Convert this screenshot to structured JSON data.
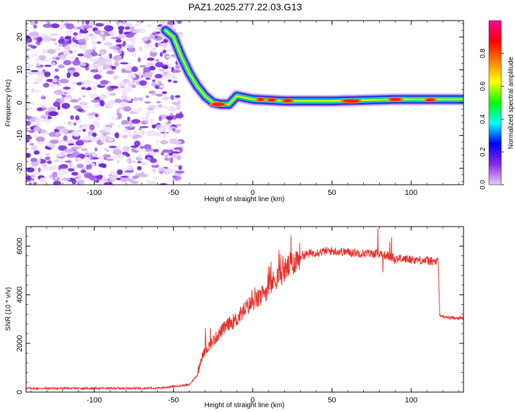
{
  "title": "PAZ1.2025.277.22.03.G13",
  "chart_data": [
    {
      "type": "heatmap",
      "name": "spectrogram",
      "xlabel": "Height of straight line (km)",
      "ylabel": "Frequency (Hz)",
      "xlim": [
        -143,
        133
      ],
      "ylim": [
        -25,
        25
      ],
      "x_ticks": [
        -100,
        -50,
        0,
        50,
        100
      ],
      "y_ticks": [
        -20,
        -10,
        0,
        10,
        20
      ],
      "signal_track": [
        {
          "x": -55,
          "y": 22
        },
        {
          "x": -50,
          "y": 20
        },
        {
          "x": -45,
          "y": 14
        },
        {
          "x": -40,
          "y": 9
        },
        {
          "x": -35,
          "y": 5
        },
        {
          "x": -30,
          "y": 2
        },
        {
          "x": -25,
          "y": 0
        },
        {
          "x": -20,
          "y": -0.5
        },
        {
          "x": -15,
          "y": -0.5
        },
        {
          "x": -10,
          "y": 2
        },
        {
          "x": 0,
          "y": 1
        },
        {
          "x": 20,
          "y": 0.5
        },
        {
          "x": 50,
          "y": 0.5
        },
        {
          "x": 90,
          "y": 1
        },
        {
          "x": 133,
          "y": 1
        }
      ],
      "noise_region_x": [
        -143,
        -50
      ],
      "colorbar": {
        "label": "Normalized spectral amplitude",
        "range": [
          0,
          1
        ],
        "ticks": [
          "0.0",
          "0.2",
          "0.4",
          "0.6",
          "0.8"
        ],
        "colors": [
          "#e2cdf7",
          "#8a2be2",
          "#0000ff",
          "#00ffff",
          "#00ff00",
          "#ffff00",
          "#ff8000",
          "#ff0000",
          "#ff00a0"
        ]
      }
    },
    {
      "type": "line",
      "name": "snr",
      "xlabel": "Height of straight line (km)",
      "ylabel": "SNR (10 * v/v)",
      "xlim": [
        -143,
        133
      ],
      "ylim": [
        0,
        6800
      ],
      "x_ticks": [
        -100,
        -50,
        0,
        50,
        100
      ],
      "y_ticks": [
        0,
        2000,
        4000,
        6000
      ],
      "color": "#e8302a",
      "series": [
        {
          "name": "SNR",
          "x": [
            -143,
            -60,
            -40,
            -35,
            -33,
            -30,
            -25,
            -20,
            -15,
            -10,
            -5,
            0,
            5,
            10,
            15,
            20,
            25,
            30,
            40,
            50,
            60,
            70,
            80,
            85,
            90,
            100,
            110,
            117,
            118,
            120,
            125,
            133
          ],
          "y": [
            150,
            160,
            300,
            700,
            1300,
            1700,
            2100,
            2500,
            2800,
            3000,
            3400,
            3700,
            3900,
            4300,
            4700,
            5000,
            5300,
            5600,
            5750,
            5800,
            5750,
            5700,
            5700,
            5600,
            5500,
            5450,
            5400,
            5350,
            3150,
            3100,
            3050,
            3050
          ]
        }
      ]
    }
  ]
}
